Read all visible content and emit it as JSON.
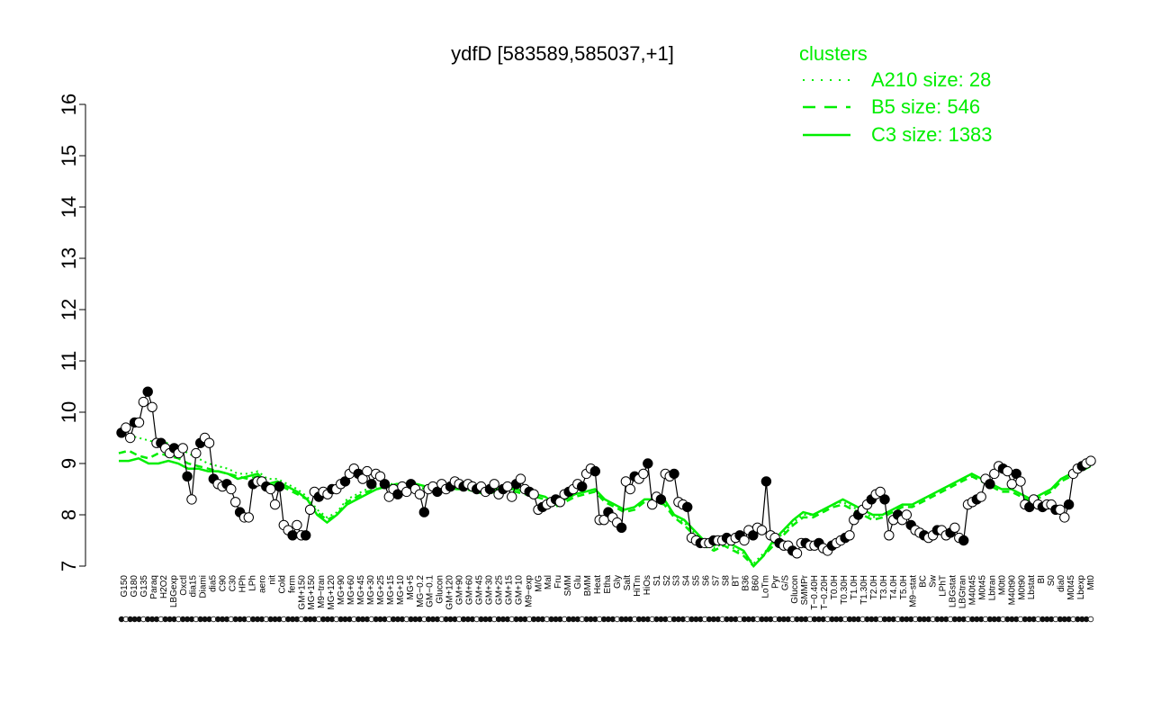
{
  "chart_data": {
    "type": "line",
    "title": "ydfD [583589,585037,+1]",
    "ylim": [
      7,
      16
    ],
    "yticks": [
      "7",
      "8",
      "9",
      "10",
      "11",
      "12",
      "13",
      "14",
      "15",
      "16"
    ],
    "legend": {
      "title": "clusters",
      "position": "top-right",
      "entries": [
        {
          "label": "A210 size: 28",
          "style": "dotted"
        },
        {
          "label": "B5 size: 546",
          "style": "dashed"
        },
        {
          "label": "C3 size: 1383",
          "style": "solid"
        }
      ]
    },
    "line_color": "#00ee00",
    "x_tick_labels": [
      "G150",
      "G180",
      "G135",
      "Paraq",
      "H2O2",
      "LBGexp",
      "Oxctl",
      "dia15",
      "Diami",
      "dia5",
      "C90",
      "C30",
      "HPh",
      "LPh",
      "aero",
      "nit",
      "Cold",
      "ferm",
      "GM+150",
      "MG+150",
      "M9−tran",
      "MG+120",
      "MG+90",
      "MG+60",
      "MG+45",
      "MG+30",
      "MG+25",
      "MG+15",
      "MG+10",
      "MG+5",
      "MG−0.2",
      "GM−0.1",
      "Glucon",
      "GM+120",
      "GM+90",
      "GM+60",
      "GM+45",
      "GM+30",
      "GM+25",
      "GM+15",
      "GM+10",
      "M9−exp",
      "M/G",
      "Mal",
      "Fru",
      "SMM",
      "Glu",
      "BMM",
      "Heat",
      "Etha",
      "Gly",
      "Salt",
      "HiTm",
      "HiOs",
      "S1",
      "S2",
      "S3",
      "S4",
      "S5",
      "S6",
      "S7",
      "S8",
      "BT",
      "B36",
      "B60",
      "LoTm",
      "Pyr",
      "G/S",
      "Glucon",
      "SMMPr",
      "T−0.40H",
      "T−0.20H",
      "T0.0H",
      "T0.30H",
      "T1.0H",
      "T1.30H",
      "T2.0H",
      "T3.0H",
      "T4.0H",
      "T5.0H",
      "M9−stat",
      "BC",
      "Sw",
      "LPhT",
      "LBGstat",
      "LBGtran",
      "M40t45",
      "M0t45",
      "Lbtran",
      "M0t0",
      "M40t90",
      "M0t90",
      "Lbstat",
      "BI",
      "S0",
      "dia0",
      "M0t45",
      "Lbexp",
      "Mt0"
    ],
    "points_series": [
      9.6,
      9.7,
      9.5,
      9.8,
      9.8,
      10.2,
      10.4,
      10.1,
      9.4,
      9.4,
      9.3,
      9.2,
      9.3,
      9.2,
      9.3,
      8.75,
      8.3,
      9.2,
      9.4,
      9.5,
      9.4,
      8.7,
      8.6,
      8.55,
      8.6,
      8.5,
      8.25,
      8.05,
      7.95,
      7.95,
      8.6,
      8.65,
      8.65,
      8.55,
      8.5,
      8.2,
      8.55,
      7.8,
      7.7,
      7.6,
      7.8,
      7.6,
      7.6,
      8.1,
      8.45,
      8.35,
      8.45,
      8.4,
      8.5,
      8.5,
      8.6,
      8.65,
      8.8,
      8.9,
      8.8,
      8.7,
      8.85,
      8.6,
      8.8,
      8.75,
      8.6,
      8.35,
      8.5,
      8.4,
      8.55,
      8.45,
      8.6,
      8.5,
      8.4,
      8.05,
      8.5,
      8.55,
      8.45,
      8.6,
      8.5,
      8.55,
      8.65,
      8.6,
      8.55,
      8.6,
      8.55,
      8.5,
      8.55,
      8.45,
      8.5,
      8.6,
      8.4,
      8.5,
      8.55,
      8.35,
      8.6,
      8.7,
      8.5,
      8.45,
      8.4,
      8.1,
      8.15,
      8.2,
      8.25,
      8.3,
      8.25,
      8.4,
      8.45,
      8.5,
      8.6,
      8.55,
      8.8,
      8.9,
      8.85,
      7.9,
      7.9,
      8.05,
      7.95,
      7.85,
      7.75,
      8.65,
      8.5,
      8.75,
      8.7,
      8.8,
      9.0,
      8.2,
      8.35,
      8.3,
      8.8,
      8.75,
      8.8,
      8.25,
      8.2,
      8.15,
      7.55,
      7.5,
      7.45,
      7.45,
      7.45,
      7.5,
      7.5,
      7.5,
      7.55,
      7.5,
      7.55,
      7.6,
      7.5,
      7.7,
      7.6,
      7.75,
      7.7,
      8.65,
      7.6,
      7.55,
      7.45,
      7.4,
      7.4,
      7.3,
      7.25,
      7.45,
      7.45,
      7.4,
      7.4,
      7.45,
      7.35,
      7.3,
      7.4,
      7.45,
      7.5,
      7.55,
      7.6,
      7.9,
      8.0,
      8.1,
      8.2,
      8.3,
      8.4,
      8.45,
      8.3,
      7.6,
      7.9,
      8.0,
      7.9,
      8.0,
      7.8,
      7.7,
      7.65,
      7.6,
      7.55,
      7.6,
      7.7,
      7.7,
      7.6,
      7.65,
      7.75,
      7.55,
      7.5,
      8.2,
      8.25,
      8.3,
      8.35,
      8.7,
      8.6,
      8.8,
      8.95,
      8.9,
      8.85,
      8.6,
      8.8,
      8.65,
      8.2,
      8.15,
      8.3,
      8.2,
      8.15,
      8.2,
      8.2,
      8.1,
      8.1,
      7.95,
      8.2,
      8.8,
      8.9,
      8.95,
      9.0,
      9.05
    ],
    "curve_C3": [
      9.05,
      9.05,
      9.1,
      9.0,
      9.0,
      9.05,
      9.0,
      8.9,
      8.9,
      8.85,
      8.85,
      8.8,
      8.7,
      8.75,
      8.8,
      8.6,
      8.65,
      8.55,
      8.45,
      8.3,
      8.0,
      7.85,
      8.0,
      8.2,
      8.3,
      8.4,
      8.5,
      8.55,
      8.6,
      8.6,
      8.6,
      8.55,
      8.55,
      8.55,
      8.5,
      8.55,
      8.5,
      8.45,
      8.5,
      8.5,
      8.5,
      8.45,
      8.4,
      8.35,
      8.2,
      8.3,
      8.4,
      8.45,
      8.5,
      8.3,
      8.2,
      8.1,
      8.15,
      8.3,
      8.3,
      8.3,
      8.0,
      7.9,
      7.7,
      7.5,
      7.4,
      7.5,
      7.4,
      7.3,
      7.0,
      7.2,
      7.5,
      7.7,
      7.9,
      8.05,
      8.0,
      8.1,
      8.2,
      8.3,
      8.2,
      8.1,
      8.0,
      8.0,
      8.1,
      8.2,
      8.2,
      8.3,
      8.4,
      8.5,
      8.6,
      8.7,
      8.8,
      8.7,
      8.6,
      8.5,
      8.5,
      8.4,
      8.3,
      8.4,
      8.5,
      8.7,
      8.8,
      8.9,
      8.95
    ],
    "curve_B5": [
      9.2,
      9.25,
      9.15,
      9.1,
      9.2,
      9.15,
      9.1,
      9.0,
      8.95,
      8.9,
      8.85,
      8.8,
      8.75,
      8.7,
      8.75,
      8.55,
      8.6,
      8.5,
      8.4,
      8.3,
      8.05,
      7.9,
      8.0,
      8.25,
      8.35,
      8.45,
      8.5,
      8.55,
      8.55,
      8.6,
      8.55,
      8.5,
      8.55,
      8.5,
      8.5,
      8.5,
      8.45,
      8.4,
      8.45,
      8.5,
      8.45,
      8.4,
      8.35,
      8.3,
      8.15,
      8.25,
      8.35,
      8.4,
      8.45,
      8.25,
      8.15,
      8.05,
      8.1,
      8.25,
      8.25,
      8.2,
      7.95,
      7.8,
      7.6,
      7.4,
      7.3,
      7.4,
      7.3,
      7.2,
      7.0,
      7.2,
      7.4,
      7.6,
      7.8,
      7.95,
      7.95,
      8.05,
      8.15,
      8.2,
      8.1,
      8.0,
      7.9,
      7.95,
      8.05,
      8.15,
      8.15,
      8.25,
      8.35,
      8.45,
      8.55,
      8.65,
      8.75,
      8.65,
      8.55,
      8.45,
      8.45,
      8.35,
      8.25,
      8.35,
      8.45,
      8.65,
      8.75,
      8.85,
      8.95
    ],
    "curve_A210": [
      9.6,
      9.55,
      9.5,
      9.45,
      9.4,
      9.4,
      9.3,
      9.2,
      9.1,
      9.0,
      8.95,
      8.9,
      8.8,
      8.8,
      8.85,
      8.7,
      8.7,
      8.6,
      8.5,
      8.35,
      8.1,
      7.95,
      8.05,
      8.3,
      8.4,
      8.5,
      8.55,
      8.6,
      8.6,
      8.65,
      8.6,
      8.55,
      8.6,
      8.55,
      8.55,
      8.55,
      8.5,
      8.45,
      8.5,
      8.55,
      8.5,
      8.45,
      8.4,
      8.35,
      8.2,
      8.3,
      8.4,
      8.45,
      8.5,
      8.3,
      8.2,
      8.1,
      8.15,
      8.3,
      8.3,
      8.25,
      8.0,
      7.85,
      7.65,
      7.45,
      7.35,
      7.45,
      7.35,
      7.25,
      7.05,
      7.25,
      7.45,
      7.65,
      7.85,
      8.0,
      8.0,
      8.1,
      8.2,
      8.25,
      8.15,
      8.05,
      7.95,
      8.0,
      8.1,
      8.2,
      8.2,
      8.3,
      8.4,
      8.5,
      8.6,
      8.7,
      8.8,
      8.7,
      8.6,
      8.5,
      8.5,
      8.4,
      8.3,
      8.4,
      8.5,
      8.7,
      8.8,
      8.9,
      9.0
    ]
  }
}
